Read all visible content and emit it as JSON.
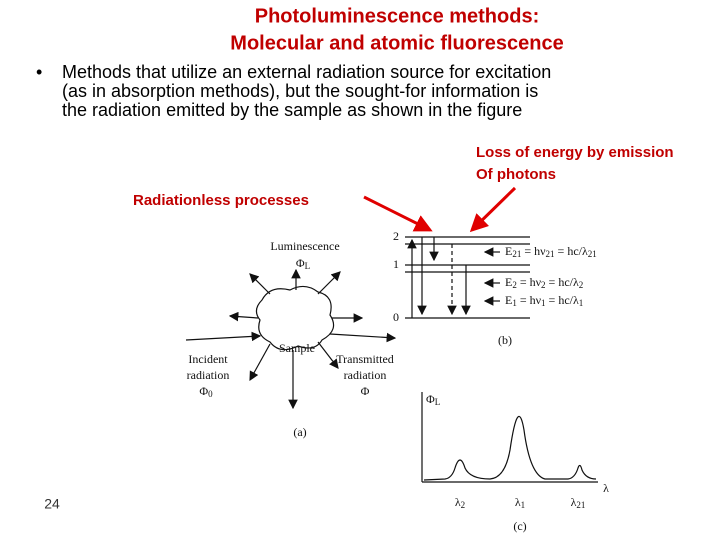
{
  "header": {
    "title": [
      "Photoluminescence methods:",
      "Molecular and atomic fluorescence"
    ]
  },
  "bullet": {
    "marker": "•",
    "lines": [
      "Methods that utilize an external radiation source for excitation",
      "(as in absorption methods), but the sought-for information is",
      "the radiation emitted by the sample as shown in the figure"
    ]
  },
  "annotations": {
    "emission": [
      "Loss of energy by emission",
      "Of photons"
    ],
    "radiationless": "Radiationless processes"
  },
  "figure_a": {
    "luminescence": "Luminescence",
    "luminescence_symbol": [
      "Φ",
      "L"
    ],
    "sample": "Sample",
    "incident": [
      "Incident",
      "radiation"
    ],
    "incident_symbol": [
      "Φ",
      "0"
    ],
    "transmitted": [
      "Transmitted",
      "radiation"
    ],
    "transmitted_symbol": "Φ",
    "caption": "(a)"
  },
  "figure_b": {
    "levels": [
      "2",
      "1",
      "0"
    ],
    "equations": [
      [
        "E",
        "21",
        " = hν",
        "21",
        " = hc/λ",
        "21"
      ],
      [
        "E",
        "2",
        " = hν",
        "2",
        " = hc/λ",
        "2"
      ],
      [
        "E",
        "1",
        " = hν",
        "1",
        " = hc/λ",
        "1"
      ]
    ],
    "caption": "(b)"
  },
  "figure_c": {
    "y_symbol": [
      "Φ",
      "L"
    ],
    "x_symbol": "λ",
    "peaks": [
      [
        "λ",
        "2"
      ],
      [
        "λ",
        "1"
      ],
      [
        "λ",
        "21"
      ]
    ],
    "caption": "(c)"
  },
  "page_number": "24"
}
